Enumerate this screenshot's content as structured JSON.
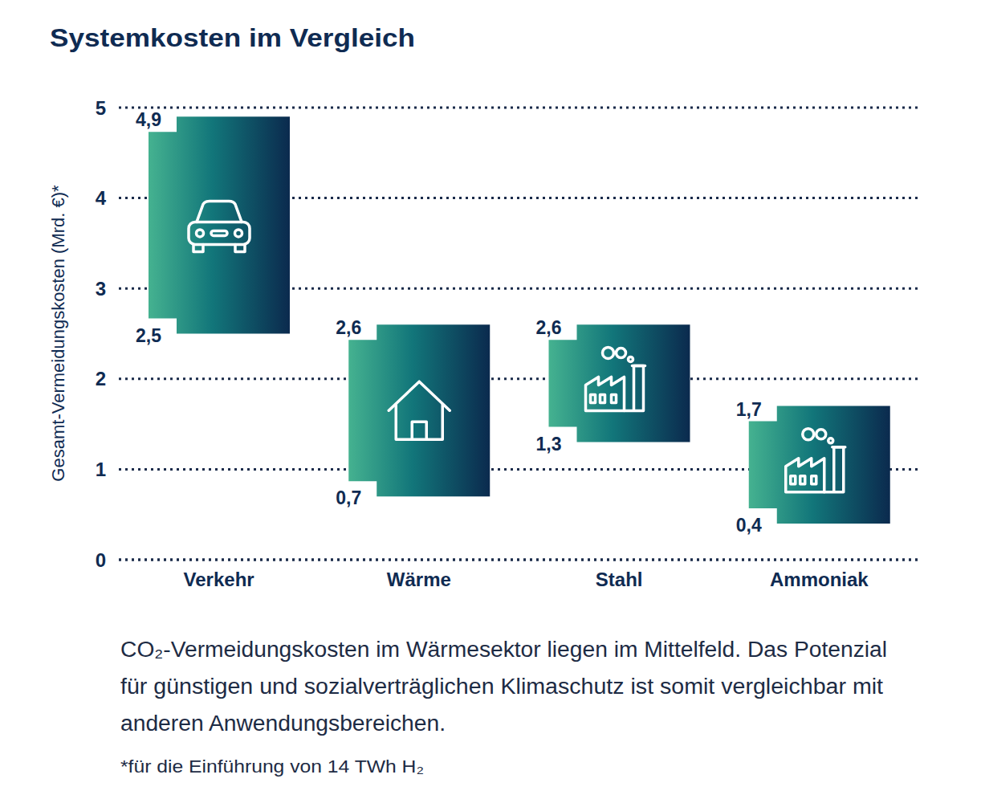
{
  "chart_data": {
    "type": "bar",
    "title": "Systemkosten im Vergleich",
    "y_label": "Gesamt-Vermeidungskosten (Mrd. €)*",
    "categories": [
      "Verkehr",
      "Wärme",
      "Stahl",
      "Ammoniak"
    ],
    "values": [
      [
        2.5,
        4.9
      ],
      [
        0.7,
        2.6
      ],
      [
        1.3,
        2.6
      ],
      [
        0.4,
        1.7
      ]
    ],
    "value_labels": [
      [
        "2,5",
        "4,9"
      ],
      [
        "0,7",
        "2,6"
      ],
      [
        "1,3",
        "2,6"
      ],
      [
        "0,4",
        "1,7"
      ]
    ],
    "color": "#0b2a4e",
    "ylim": [
      0,
      5
    ],
    "yticks": [
      0,
      1,
      2,
      3,
      4,
      5
    ],
    "grid": true,
    "data_labels": true,
    "caption": [
      "CO₂-Vermeidungskosten im Wärmesektor liegen im Mittelfeld. Das Potenzial",
      "für günstigen und sozialverträglichen Klimaschutz ist somit vergleichbar mit",
      "anderen Anwendungsbereichen."
    ],
    "footnote": "*für die Einführung von 14 TWh H₂"
  }
}
